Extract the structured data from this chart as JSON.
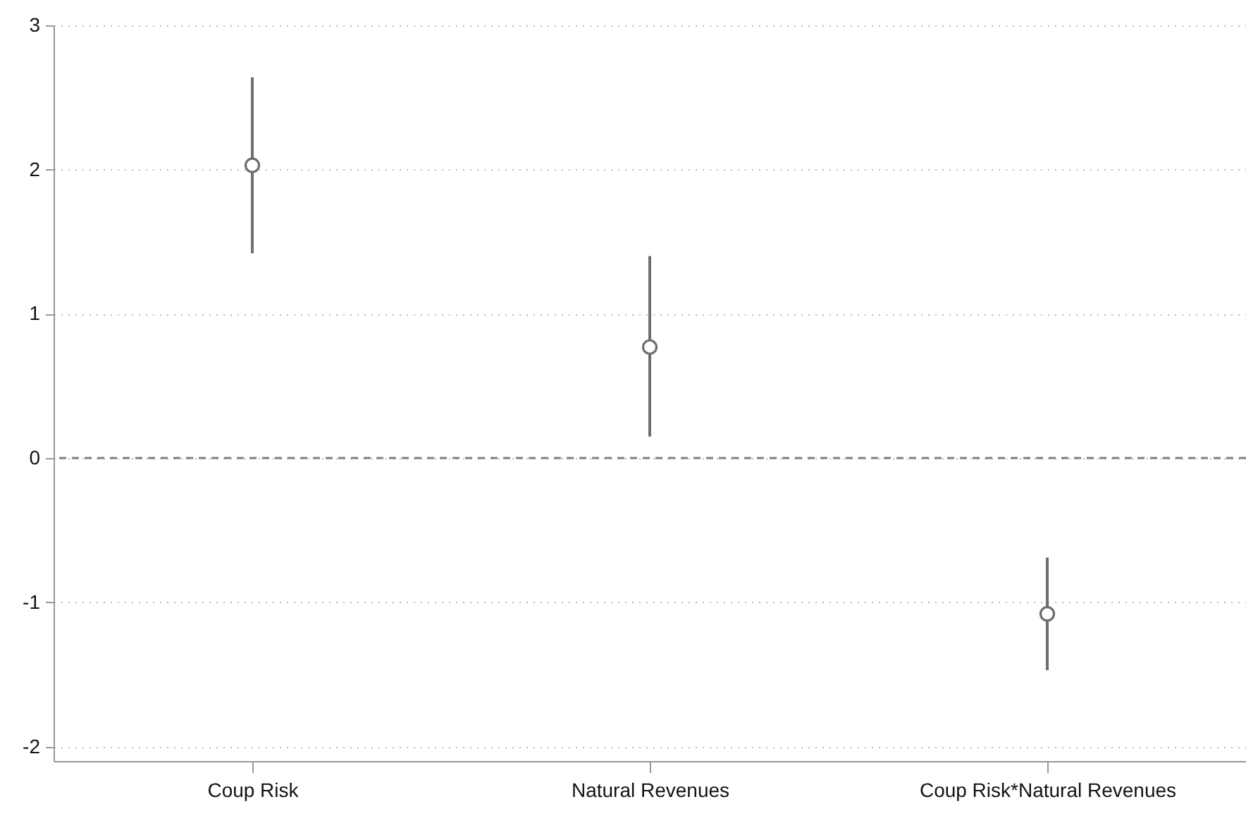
{
  "chart_data": {
    "type": "scatter",
    "categories": [
      "Coup Risk",
      "Natural Revenues",
      "Coup Risk*Natural Revenues"
    ],
    "series": [
      {
        "color": "#6e6e6e",
        "values": [
          2.03,
          0.77,
          -1.08
        ],
        "errors": [
          [
            1.42,
            2.64
          ],
          [
            0.15,
            1.4
          ],
          [
            -1.47,
            -0.69
          ]
        ]
      }
    ],
    "ylim": [
      -2.1,
      3
    ],
    "yticks": [
      -2,
      -1,
      0,
      1,
      2,
      3
    ],
    "grid": "y",
    "marker": "circle",
    "ref_lines": [
      {
        "axis": "y",
        "value": 0,
        "line_style": "dashed",
        "color": "#808080"
      }
    ]
  }
}
